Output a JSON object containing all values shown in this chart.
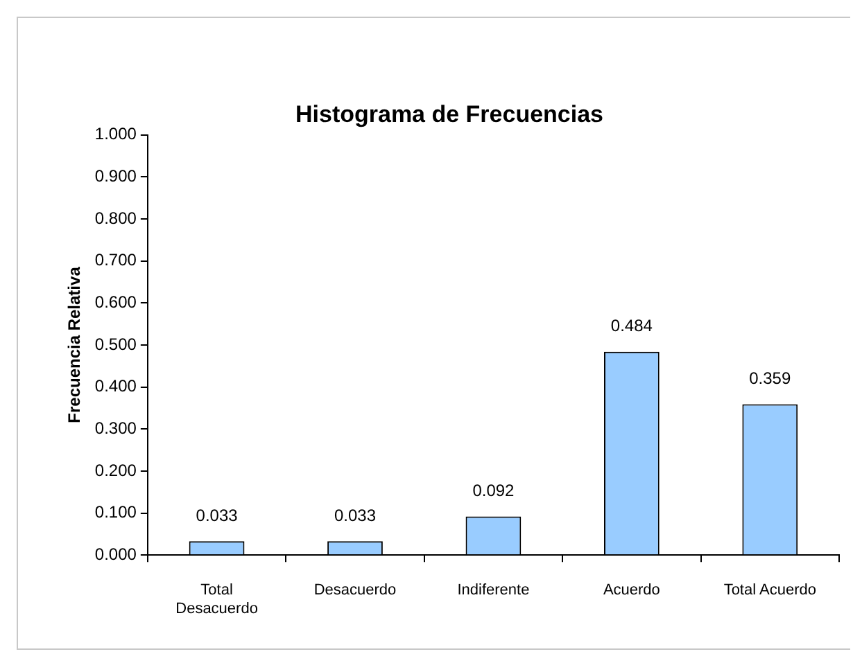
{
  "chart_data": {
    "type": "bar",
    "title": "Histograma de Frecuencias",
    "ylabel": "Frecuencia Relativa",
    "categories": [
      "Total Desacuerdo",
      "Desacuerdo",
      "Indiferente",
      "Acuerdo",
      "Total Acuerdo"
    ],
    "values": [
      0.033,
      0.033,
      0.092,
      0.484,
      0.359
    ],
    "color": "#99ccff",
    "ylim": [
      0,
      1
    ],
    "yticks": [
      {
        "value": 0,
        "label": "0.000"
      },
      {
        "value": 0.1,
        "label": "0.100"
      },
      {
        "value": 0.2,
        "label": "0.200"
      },
      {
        "value": 0.3,
        "label": "0.300"
      },
      {
        "value": 0.4,
        "label": "0.400"
      },
      {
        "value": 0.5,
        "label": "0.500"
      },
      {
        "value": 0.6,
        "label": "0.600"
      },
      {
        "value": 0.7,
        "label": "0.700"
      },
      {
        "value": 0.8,
        "label": "0.800"
      },
      {
        "value": 0.9,
        "label": "0.900"
      },
      {
        "value": 1,
        "label": "1.000"
      }
    ],
    "grid": false,
    "legend": false,
    "data_labels": true
  }
}
